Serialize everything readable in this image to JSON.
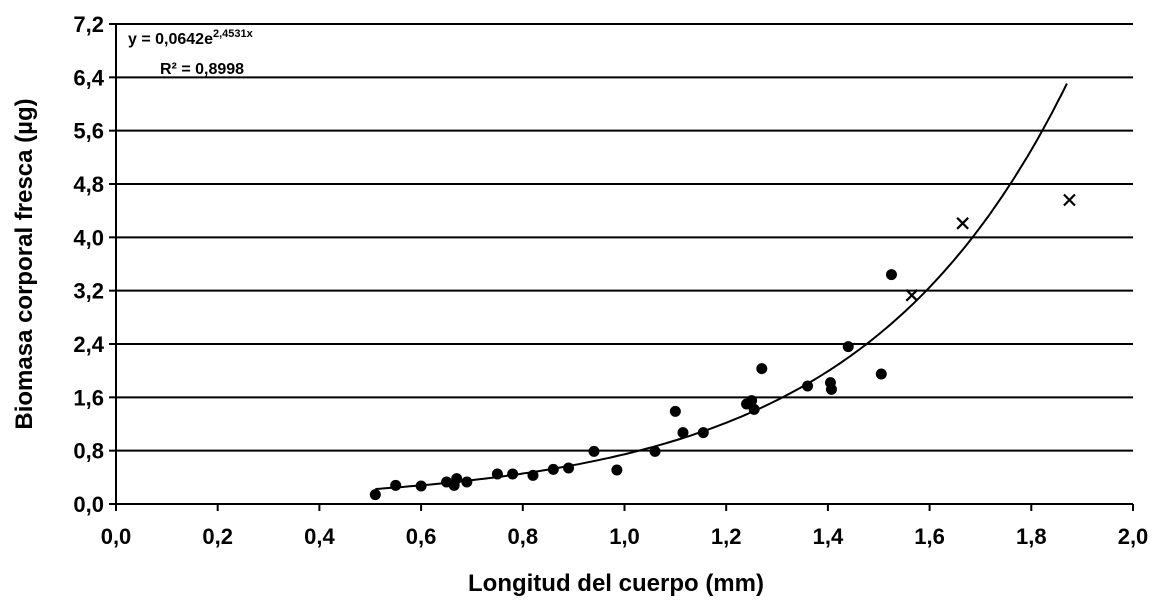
{
  "chart_data": {
    "type": "scatter",
    "xlabel": "Longitud del cuerpo (mm)",
    "ylabel": "Biomasa corporal fresca (µg)",
    "xlim": [
      0.0,
      2.0
    ],
    "ylim": [
      0.0,
      7.2
    ],
    "x_ticks": [
      "0,0",
      "0,2",
      "0,4",
      "0,6",
      "0,8",
      "1,0",
      "1,2",
      "1,4",
      "1,6",
      "1,8",
      "2,0"
    ],
    "y_ticks": [
      "0,0",
      "0,8",
      "1,6",
      "2,4",
      "3,2",
      "4,0",
      "4,8",
      "5,6",
      "6,4",
      "7,2"
    ],
    "grid": "horizontal",
    "equation": {
      "prefix": "y = 0,0642e",
      "exponent": "2,4531x",
      "r2": "R² = 0,8998",
      "a": 0.0642,
      "b": 2.4531,
      "x_range": [
        0.51,
        1.87
      ]
    },
    "series": [
      {
        "marker": "circle",
        "x": [
          0.51,
          0.55,
          0.6,
          0.65,
          0.665,
          0.67,
          0.69,
          0.75,
          0.78,
          0.82,
          0.86,
          0.89,
          0.94,
          0.985,
          1.06,
          1.1,
          1.115,
          1.155,
          1.24,
          1.25,
          1.255,
          1.27,
          1.36,
          1.405,
          1.407,
          1.44,
          1.505,
          1.525
        ],
        "y": [
          0.14,
          0.28,
          0.27,
          0.33,
          0.28,
          0.38,
          0.33,
          0.45,
          0.45,
          0.43,
          0.52,
          0.54,
          0.79,
          0.51,
          0.79,
          1.39,
          1.07,
          1.07,
          1.5,
          1.55,
          1.42,
          2.03,
          1.77,
          1.82,
          1.72,
          2.36,
          1.95,
          3.44
        ]
      },
      {
        "marker": "cross",
        "x": [
          1.565,
          1.665,
          1.875
        ],
        "y": [
          3.13,
          4.21,
          4.56
        ]
      }
    ]
  }
}
